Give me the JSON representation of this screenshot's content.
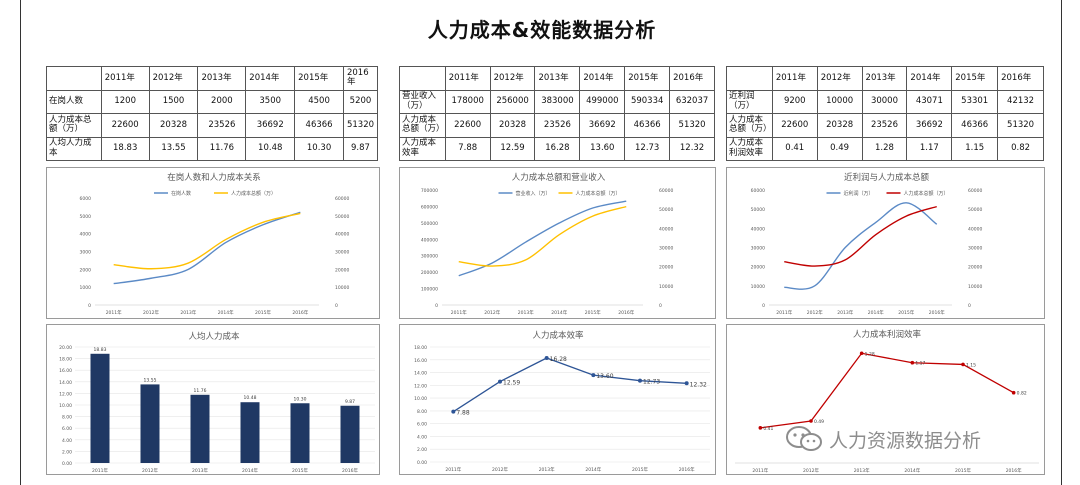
{
  "title": "人力成本&效能数据分析",
  "years": [
    "2011年",
    "2012年",
    "2013年",
    "2014年",
    "2015年",
    "2016年"
  ],
  "tables": [
    {
      "rows": [
        {
          "label": "在岗人数",
          "values": [
            "1200",
            "1500",
            "2000",
            "3500",
            "4500",
            "5200"
          ]
        },
        {
          "label": "人力成本总额（万）",
          "values": [
            "22600",
            "20328",
            "23526",
            "36692",
            "46366",
            "51320"
          ]
        },
        {
          "label": "人均人力成本",
          "values": [
            "18.83",
            "13.55",
            "11.76",
            "10.48",
            "10.30",
            "9.87"
          ]
        }
      ]
    },
    {
      "rows": [
        {
          "label": "营业收入（万）",
          "values": [
            "178000",
            "256000",
            "383000",
            "499000",
            "590334",
            "632037"
          ]
        },
        {
          "label": "人力成本总额（万）",
          "values": [
            "22600",
            "20328",
            "23526",
            "36692",
            "46366",
            "51320"
          ]
        },
        {
          "label": "人力成本效率",
          "values": [
            "7.88",
            "12.59",
            "16.28",
            "13.60",
            "12.73",
            "12.32"
          ]
        }
      ]
    },
    {
      "rows": [
        {
          "label": "近利润（万）",
          "values": [
            "9200",
            "10000",
            "30000",
            "43071",
            "53301",
            "42132"
          ]
        },
        {
          "label": "人力成本总额（万）",
          "values": [
            "22600",
            "20328",
            "23526",
            "36692",
            "46366",
            "51320"
          ]
        },
        {
          "label": "人力成本利润效率",
          "values": [
            "0.41",
            "0.49",
            "1.28",
            "1.17",
            "1.15",
            "0.82"
          ]
        }
      ]
    }
  ],
  "watermark": "人力资源数据分析",
  "colors": {
    "blue": "#5b8ac6",
    "gold": "#ffc000",
    "red": "#c00000",
    "navy": "#1f3864",
    "line_blue": "#2e5596"
  },
  "chart_data": [
    {
      "type": "line",
      "title": "在岗人数和人力成本关系",
      "categories": [
        "2011年",
        "2012年",
        "2013年",
        "2014年",
        "2015年",
        "2016年"
      ],
      "series": [
        {
          "name": "在岗人数",
          "axis": "left",
          "values": [
            1200,
            1500,
            2000,
            3500,
            4500,
            5200
          ]
        },
        {
          "name": "人力成本总额（万）",
          "axis": "right",
          "values": [
            22600,
            20328,
            23526,
            36692,
            46366,
            51320
          ]
        }
      ],
      "ylim": [
        0,
        6000
      ],
      "yticks": [
        "0",
        "1000",
        "2000",
        "3000",
        "4000",
        "5000",
        "6000"
      ],
      "y2lim": [
        0,
        60000
      ],
      "y2ticks": [
        "0",
        "10000",
        "20000",
        "30000",
        "40000",
        "50000",
        "60000"
      ],
      "legend": "top"
    },
    {
      "type": "line",
      "title": "人力成本总额和营业收入",
      "categories": [
        "2011年",
        "2012年",
        "2013年",
        "2014年",
        "2015年",
        "2016年"
      ],
      "series": [
        {
          "name": "营业收入（万）",
          "axis": "left",
          "values": [
            178000,
            256000,
            383000,
            499000,
            590334,
            632037
          ]
        },
        {
          "name": "人力成本总额（万）",
          "axis": "right",
          "values": [
            22600,
            20328,
            23526,
            36692,
            46366,
            51320
          ]
        }
      ],
      "ylim": [
        0,
        700000
      ],
      "yticks": [
        "0",
        "100000",
        "200000",
        "300000",
        "400000",
        "500000",
        "600000",
        "700000"
      ],
      "y2lim": [
        0,
        60000
      ],
      "y2ticks": [
        "0",
        "10000",
        "20000",
        "30000",
        "40000",
        "50000",
        "60000"
      ],
      "legend": "top"
    },
    {
      "type": "line",
      "title": "近利润与人力成本总额",
      "categories": [
        "2011年",
        "2012年",
        "2013年",
        "2014年",
        "2015年",
        "2016年"
      ],
      "series": [
        {
          "name": "近利润（万）",
          "axis": "left",
          "values": [
            9200,
            10000,
            30000,
            43071,
            53301,
            42132
          ]
        },
        {
          "name": "人力成本总额（万）",
          "axis": "right",
          "values": [
            22600,
            20328,
            23526,
            36692,
            46366,
            51320
          ]
        }
      ],
      "ylim": [
        0,
        60000
      ],
      "yticks": [
        "0",
        "10000",
        "20000",
        "30000",
        "40000",
        "50000",
        "60000"
      ],
      "y2lim": [
        0,
        60000
      ],
      "y2ticks": [
        "0",
        "10000",
        "20000",
        "30000",
        "40000",
        "50000",
        "60000"
      ],
      "legend": "top"
    },
    {
      "type": "bar",
      "title": "人均人力成本",
      "categories": [
        "2011年",
        "2012年",
        "2013年",
        "2014年",
        "2015年",
        "2016年"
      ],
      "values": [
        18.83,
        13.55,
        11.76,
        10.48,
        10.3,
        9.87
      ],
      "labels": [
        "18.83",
        "13.55",
        "11.76",
        "10.48",
        "10.30",
        "9.87"
      ],
      "ylim": [
        0,
        20
      ],
      "yticks": [
        "0.00",
        "2.00",
        "4.00",
        "6.00",
        "8.00",
        "10.00",
        "12.00",
        "14.00",
        "16.00",
        "18.00",
        "20.00"
      ]
    },
    {
      "type": "line",
      "title": "人力成本效率",
      "categories": [
        "2011年",
        "2012年",
        "2013年",
        "2014年",
        "2015年",
        "2016年"
      ],
      "values": [
        7.88,
        12.59,
        16.28,
        13.6,
        12.73,
        12.32
      ],
      "labels": [
        "7.88",
        "12.59",
        "16.28",
        "13.60",
        "12.73",
        "12.32"
      ],
      "ylim": [
        0,
        18
      ],
      "yticks": [
        "0.00",
        "2.00",
        "4.00",
        "6.00",
        "8.00",
        "10.00",
        "12.00",
        "14.00",
        "16.00",
        "18.00"
      ]
    },
    {
      "type": "line",
      "title": "人力成本利润效率",
      "categories": [
        "2011年",
        "2012年",
        "2013年",
        "2014年",
        "2015年",
        "2016年"
      ],
      "values": [
        0.41,
        0.49,
        1.28,
        1.17,
        1.15,
        0.82
      ],
      "labels": [
        "0.41",
        "0.49",
        "1.28",
        "1.17",
        "1.15",
        "0.82"
      ],
      "ylim": [
        0,
        1.4
      ]
    }
  ]
}
